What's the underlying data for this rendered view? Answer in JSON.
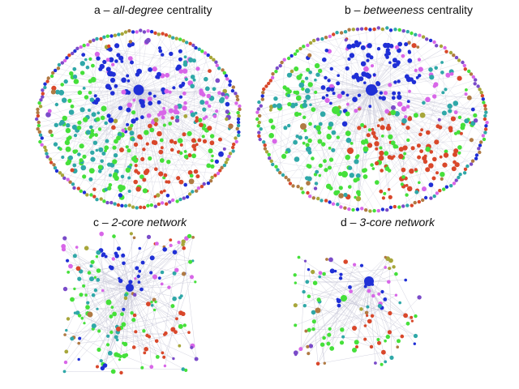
{
  "panels": [
    {
      "id": "a",
      "prefix": "a – ",
      "emph": "all-degree",
      "suffix": " centrality"
    },
    {
      "id": "b",
      "prefix": "b – ",
      "emph": "betweeness",
      "suffix": " centrality"
    },
    {
      "id": "c",
      "prefix": "c – ",
      "emph": "2-core network",
      "suffix": ""
    },
    {
      "id": "d",
      "prefix": "d – ",
      "emph": "3-core network",
      "suffix": ""
    }
  ],
  "node_colors": {
    "blue": "#1f2fd6",
    "magenta": "#d866e8",
    "green": "#45e03a",
    "orange_red": "#d9472a",
    "teal": "#2fa8a8",
    "purple": "#7a4bc9",
    "brown": "#b07a43",
    "olive": "#a7a63a",
    "edge": "#c8c8d8"
  }
}
